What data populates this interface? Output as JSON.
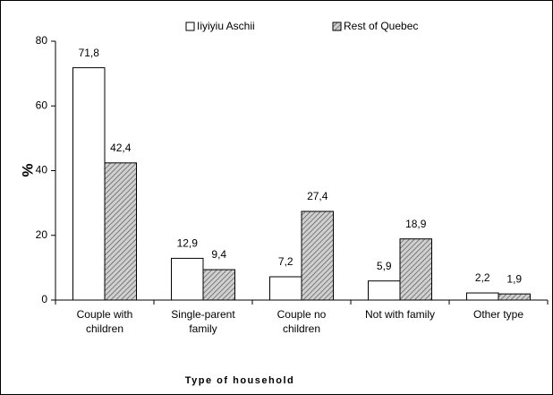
{
  "chart_data": {
    "type": "bar",
    "categories": [
      "Couple with children",
      "Single-parent family",
      "Couple no children",
      "Not with family",
      "Other type"
    ],
    "series": [
      {
        "name": "Iiyiyiu Aschii",
        "color": "#ffffff",
        "pattern": "solid",
        "values": [
          71.8,
          12.9,
          7.2,
          5.9,
          2.2
        ],
        "value_labels": [
          "71,8",
          "12,9",
          "7,2",
          "5,9",
          "2,2"
        ]
      },
      {
        "name": "Rest of Quebec",
        "color": "#d0d0d0",
        "pattern": "hatch",
        "values": [
          42.4,
          9.4,
          27.4,
          18.9,
          1.9
        ],
        "value_labels": [
          "42,4",
          "9,4",
          "27,4",
          "18,9",
          "1,9"
        ]
      }
    ],
    "xlabel": "Type of household",
    "ylabel": "%",
    "ylim": [
      0,
      80
    ],
    "yticks": [
      0,
      20,
      40,
      60,
      80
    ],
    "grid": false,
    "legend": "top"
  }
}
